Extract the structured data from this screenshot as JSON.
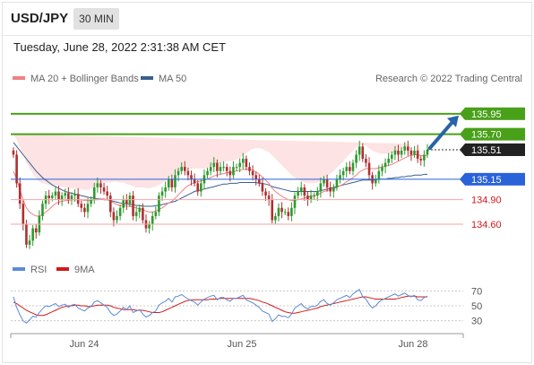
{
  "header": {
    "symbol": "USD/JPY",
    "timeframe": "30 MIN"
  },
  "timestamp": "Tuesday, June 28, 2022 2:31:38 AM CET",
  "legend": {
    "bollinger": "MA 20 + Bollinger Bands",
    "ma50": "MA 50",
    "copyright": "Research © 2022 Trading Central"
  },
  "colors": {
    "up_candle": "#2e9a2e",
    "down_candle": "#b03030",
    "ma20": "#f08080",
    "bollinger_fill": "#fde3e3",
    "ma50": "#3a5f8f",
    "green_level": "#49a019",
    "blue_level": "#2962d9",
    "red_level": "#f2a6a6",
    "rsi": "#5b8bd8",
    "rsi_ma": "#d11a1a",
    "arrow": "#2863a8"
  },
  "chart_data": [
    {
      "type": "candlestick",
      "x_labels": [
        "Jun 24",
        "Jun 25",
        "Jun 28"
      ],
      "ylim": [
        134.25,
        136.2
      ],
      "levels": [
        {
          "value": 135.95,
          "label": "135.95",
          "kind": "resistance-green"
        },
        {
          "value": 135.7,
          "label": "135.70",
          "kind": "resistance-green"
        },
        {
          "value": 135.51,
          "label": "135.51",
          "kind": "last-price"
        },
        {
          "value": 135.15,
          "label": "135.15",
          "kind": "pivot-blue"
        },
        {
          "value": 134.9,
          "label": "134.90",
          "kind": "support-red"
        },
        {
          "value": 134.6,
          "label": "134.60",
          "kind": "support-red"
        }
      ],
      "close": [
        135.45,
        135.1,
        134.85,
        134.6,
        134.35,
        134.4,
        134.55,
        134.5,
        134.7,
        134.85,
        134.95,
        134.92,
        134.95,
        135.0,
        134.9,
        134.95,
        134.98,
        134.9,
        134.95,
        134.97,
        134.85,
        134.8,
        134.75,
        134.85,
        134.9,
        135.05,
        135.1,
        135.05,
        135.0,
        134.95,
        134.75,
        134.65,
        134.7,
        134.8,
        134.9,
        134.85,
        134.95,
        134.7,
        134.75,
        134.8,
        134.65,
        134.55,
        134.6,
        134.7,
        134.75,
        134.95,
        135.0,
        135.05,
        135.15,
        135.05,
        135.2,
        135.25,
        135.3,
        135.25,
        135.2,
        135.15,
        135.1,
        135.0,
        135.1,
        135.2,
        135.25,
        135.3,
        135.35,
        135.25,
        135.3,
        135.3,
        135.25,
        135.2,
        135.3,
        135.3,
        135.35,
        135.4,
        135.3,
        135.25,
        135.2,
        135.15,
        135.1,
        135.0,
        134.95,
        134.9,
        134.65,
        134.7,
        134.8,
        134.75,
        134.75,
        134.7,
        134.8,
        134.95,
        135.0,
        135.05,
        134.95,
        134.9,
        134.95,
        134.95,
        135.0,
        135.1,
        135.15,
        135.05,
        135.0,
        135.05,
        135.15,
        135.2,
        135.25,
        135.3,
        135.25,
        135.35,
        135.45,
        135.55,
        135.4,
        135.35,
        135.2,
        135.1,
        135.15,
        135.25,
        135.3,
        135.35,
        135.4,
        135.45,
        135.5,
        135.45,
        135.5,
        135.55,
        135.5,
        135.45,
        135.5,
        135.4,
        135.38,
        135.45,
        135.51
      ],
      "ma20": [
        135.25,
        135.15,
        135.02,
        134.9,
        134.8,
        134.75,
        134.72,
        134.7,
        134.7,
        134.72,
        134.75,
        134.78,
        134.82,
        134.85,
        134.87,
        134.88,
        134.89,
        134.89,
        134.9,
        134.9,
        134.9,
        134.9,
        134.89,
        134.89,
        134.89,
        134.9,
        134.9,
        134.91,
        134.91,
        134.9,
        134.88,
        134.86,
        134.84,
        134.83,
        134.83,
        134.82,
        134.82,
        134.81,
        134.8,
        134.79,
        134.78,
        134.76,
        134.75,
        134.75,
        134.76,
        134.78,
        134.8,
        134.83,
        134.86,
        134.88,
        134.92,
        134.96,
        135.0,
        135.04,
        135.07,
        135.09,
        135.11,
        135.12,
        135.13,
        135.14,
        135.15,
        135.17,
        135.19,
        135.2,
        135.21,
        135.22,
        135.23,
        135.23,
        135.24,
        135.25,
        135.26,
        135.27,
        135.27,
        135.27,
        135.26,
        135.24,
        135.21,
        135.18,
        135.14,
        135.1,
        135.04,
        135.0,
        134.97,
        134.94,
        134.92,
        134.9,
        134.89,
        134.89,
        134.9,
        134.91,
        134.92,
        134.93,
        134.94,
        134.95,
        134.96,
        134.98,
        135.0,
        135.01,
        135.02,
        135.03,
        135.05,
        135.07,
        135.09,
        135.12,
        135.14,
        135.17,
        135.2,
        135.24,
        135.26,
        135.28,
        135.28,
        135.28,
        135.28,
        135.29,
        135.3,
        135.31,
        135.32,
        135.33,
        135.35,
        135.37,
        135.39,
        135.41,
        135.43,
        135.44,
        135.45,
        135.45,
        135.44,
        135.44,
        135.44
      ],
      "ma50": [
        135.6,
        135.55,
        135.5,
        135.45,
        135.4,
        135.35,
        135.3,
        135.25,
        135.21,
        135.17,
        135.14,
        135.11,
        135.08,
        135.06,
        135.04,
        135.02,
        135.0,
        134.99,
        134.98,
        134.97,
        134.96,
        134.95,
        134.94,
        134.93,
        134.92,
        134.92,
        134.91,
        134.91,
        134.9,
        134.9,
        134.89,
        134.88,
        134.87,
        134.86,
        134.85,
        134.85,
        134.84,
        134.84,
        134.83,
        134.83,
        134.82,
        134.82,
        134.82,
        134.82,
        134.83,
        134.83,
        134.84,
        134.85,
        134.86,
        134.87,
        134.88,
        134.9,
        134.92,
        134.94,
        134.96,
        134.98,
        135.0,
        135.01,
        135.02,
        135.03,
        135.04,
        135.05,
        135.06,
        135.07,
        135.08,
        135.09,
        135.09,
        135.1,
        135.1,
        135.1,
        135.11,
        135.11,
        135.11,
        135.11,
        135.11,
        135.11,
        135.1,
        135.1,
        135.09,
        135.08,
        135.06,
        135.05,
        135.04,
        135.03,
        135.02,
        135.01,
        135.0,
        135.0,
        135.0,
        135.0,
        135.0,
        135.0,
        135.0,
        135.0,
        135.0,
        135.01,
        135.02,
        135.03,
        135.04,
        135.05,
        135.06,
        135.07,
        135.08,
        135.09,
        135.1,
        135.11,
        135.12,
        135.13,
        135.14,
        135.14,
        135.14,
        135.14,
        135.14,
        135.15,
        135.15,
        135.15,
        135.16,
        135.16,
        135.17,
        135.17,
        135.18,
        135.18,
        135.19,
        135.19,
        135.2,
        135.2,
        135.2,
        135.21,
        135.21
      ],
      "band_width": [
        0.45,
        0.48,
        0.52,
        0.55,
        0.55,
        0.53,
        0.5,
        0.46,
        0.42,
        0.38,
        0.34,
        0.3,
        0.26,
        0.23,
        0.2,
        0.18,
        0.16,
        0.15,
        0.14,
        0.13,
        0.13,
        0.13,
        0.13,
        0.13,
        0.14,
        0.16,
        0.18,
        0.19,
        0.2,
        0.21,
        0.23,
        0.26,
        0.28,
        0.28,
        0.28,
        0.27,
        0.26,
        0.25,
        0.25,
        0.26,
        0.27,
        0.28,
        0.29,
        0.3,
        0.3,
        0.3,
        0.3,
        0.3,
        0.3,
        0.3,
        0.29,
        0.28,
        0.26,
        0.24,
        0.21,
        0.19,
        0.17,
        0.16,
        0.15,
        0.14,
        0.14,
        0.14,
        0.14,
        0.14,
        0.14,
        0.14,
        0.14,
        0.14,
        0.14,
        0.14,
        0.15,
        0.17,
        0.2,
        0.23,
        0.26,
        0.29,
        0.32,
        0.34,
        0.36,
        0.38,
        0.4,
        0.4,
        0.39,
        0.38,
        0.36,
        0.34,
        0.31,
        0.28,
        0.25,
        0.22,
        0.19,
        0.17,
        0.16,
        0.15,
        0.15,
        0.15,
        0.16,
        0.18,
        0.2,
        0.22,
        0.24,
        0.26,
        0.28,
        0.3,
        0.32,
        0.33,
        0.34,
        0.33,
        0.31,
        0.28,
        0.25,
        0.22,
        0.2,
        0.18,
        0.16,
        0.15,
        0.14,
        0.14,
        0.13,
        0.13,
        0.13,
        0.13,
        0.13,
        0.14,
        0.14,
        0.14,
        0.14,
        0.14
      ]
    },
    {
      "type": "line",
      "series": [
        {
          "name": "RSI"
        },
        {
          "name": "9MA"
        }
      ],
      "ylim": [
        20,
        80
      ],
      "y_ticks": [
        70,
        50,
        30
      ],
      "rsi": [
        62,
        48,
        38,
        30,
        27,
        31,
        36,
        35,
        41,
        46,
        50,
        49,
        51,
        53,
        49,
        51,
        52,
        48,
        51,
        52,
        47,
        45,
        43,
        47,
        49,
        55,
        57,
        54,
        51,
        48,
        41,
        37,
        39,
        43,
        48,
        45,
        50,
        41,
        43,
        45,
        39,
        35,
        37,
        41,
        43,
        51,
        54,
        56,
        60,
        55,
        62,
        63,
        65,
        62,
        59,
        57,
        55,
        51,
        55,
        59,
        61,
        63,
        64,
        58,
        61,
        61,
        58,
        56,
        60,
        60,
        62,
        64,
        58,
        56,
        54,
        51,
        48,
        43,
        41,
        39,
        29,
        33,
        38,
        36,
        36,
        34,
        39,
        47,
        50,
        53,
        48,
        46,
        49,
        49,
        51,
        56,
        58,
        53,
        51,
        54,
        58,
        60,
        62,
        64,
        61,
        66,
        69,
        72,
        62,
        59,
        52,
        47,
        50,
        55,
        58,
        60,
        62,
        64,
        66,
        63,
        65,
        67,
        64,
        62,
        64,
        58,
        57,
        61,
        63
      ],
      "ma9": [
        55,
        53,
        50,
        47,
        44,
        42,
        40,
        38,
        37,
        37,
        38,
        40,
        42,
        44,
        46,
        48,
        49,
        50,
        50,
        51,
        51,
        50,
        50,
        49,
        49,
        50,
        51,
        51,
        51,
        51,
        50,
        48,
        47,
        46,
        45,
        45,
        45,
        45,
        44,
        44,
        44,
        43,
        42,
        41,
        41,
        41,
        42,
        44,
        46,
        48,
        50,
        52,
        54,
        56,
        57,
        58,
        58,
        58,
        58,
        58,
        58,
        59,
        59,
        59,
        60,
        60,
        60,
        60,
        60,
        60,
        60,
        60,
        60,
        60,
        59,
        58,
        57,
        55,
        54,
        52,
        50,
        48,
        46,
        44,
        42,
        41,
        40,
        40,
        41,
        42,
        43,
        44,
        45,
        46,
        47,
        49,
        50,
        51,
        52,
        53,
        54,
        55,
        56,
        57,
        58,
        59,
        60,
        61,
        62,
        62,
        61,
        60,
        59,
        59,
        59,
        59,
        59,
        59,
        59,
        60,
        61,
        62,
        63,
        63,
        63,
        62,
        62,
        62,
        62
      ]
    }
  ]
}
